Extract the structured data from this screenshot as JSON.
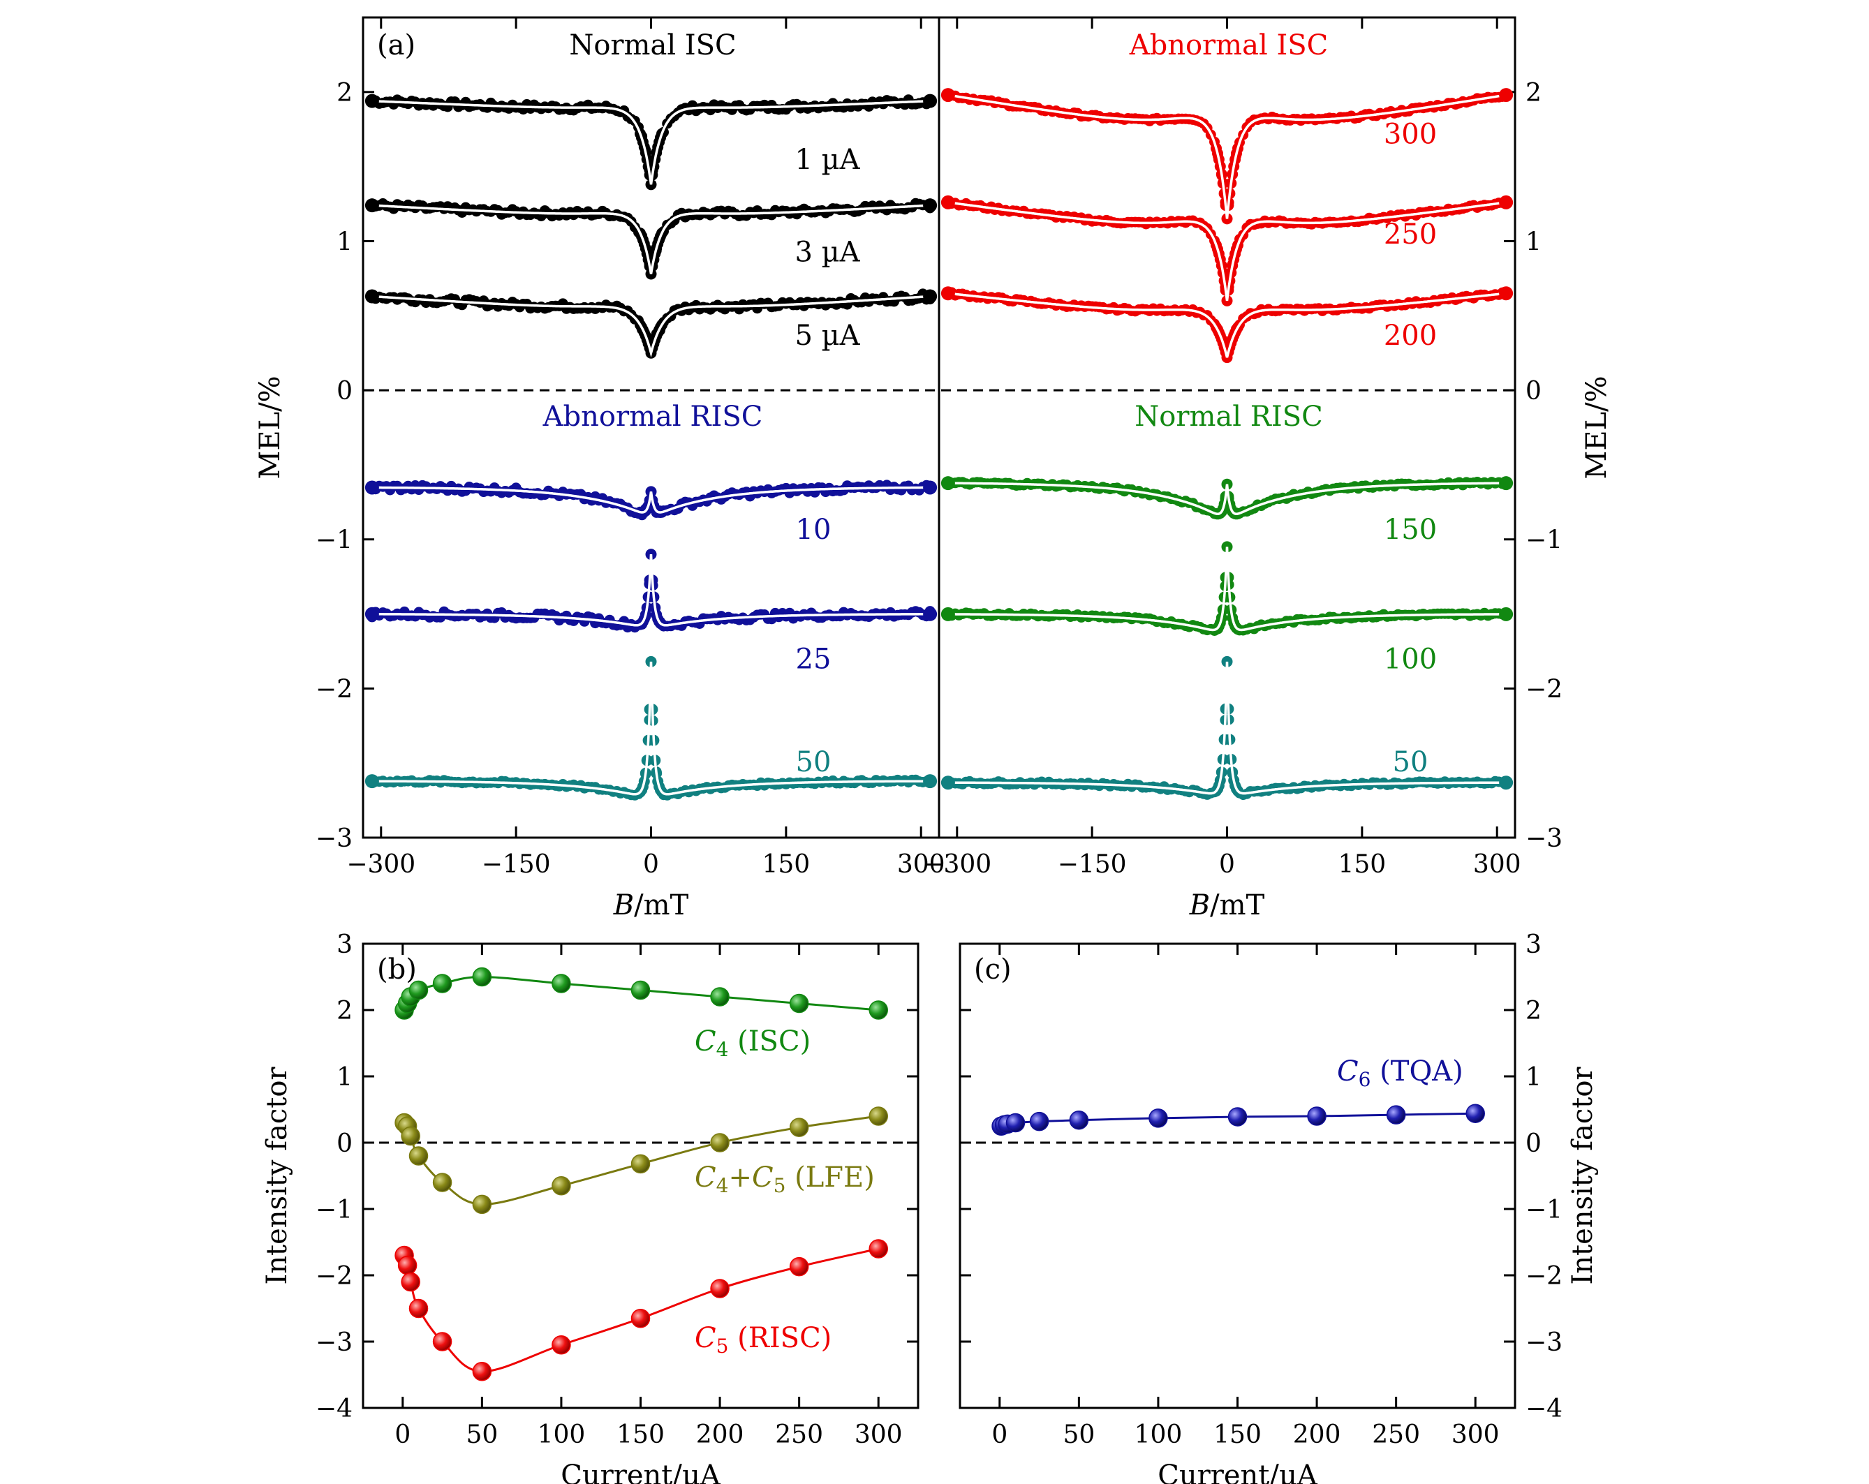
{
  "colors": {
    "black": "#000000",
    "red": "#ee0000",
    "navy": "#101099",
    "teal": "#108080",
    "green": "#118811",
    "olive": "#7a7a10",
    "fit": "#ffffff"
  },
  "chart_data": [
    {
      "type": "line",
      "panel": "(a)",
      "xlabel_italic": "B",
      "xlabel_rest": "/mT",
      "ylabel": "MEL/%",
      "xlim": [
        -320,
        320
      ],
      "ylim": [
        -3,
        2.5
      ],
      "xticks": [
        "−300",
        "−150",
        "0",
        "150",
        "300"
      ],
      "yticks": [
        "−3",
        "−2",
        "−1",
        "0",
        "1",
        "2"
      ],
      "subplots": [
        {
          "title": "Normal ISC",
          "title_color": "black",
          "position": "top-left",
          "curves": [
            {
              "label": "1 µA",
              "color": "black",
              "kind": "dip",
              "base": 1.94,
              "center": 1.38,
              "width": 12,
              "rise": 0.08,
              "noise": 0.02
            },
            {
              "label": "3 µA",
              "color": "black",
              "kind": "dip",
              "base": 1.24,
              "center": 0.78,
              "width": 12,
              "rise": 0.1,
              "noise": 0.02
            },
            {
              "label": "5 µA",
              "color": "black",
              "kind": "dip",
              "base": 0.63,
              "center": 0.25,
              "width": 15,
              "rise": 0.12,
              "noise": 0.02
            }
          ]
        },
        {
          "title": "Abnormal ISC",
          "title_color": "red",
          "position": "top-right",
          "curves": [
            {
              "label": "300",
              "color": "red",
              "kind": "dip",
              "base": 1.98,
              "center": 1.15,
              "width": 12,
              "rise": 0.3,
              "noise": 0.01
            },
            {
              "label": "250",
              "color": "red",
              "kind": "dip",
              "base": 1.26,
              "center": 0.6,
              "width": 12,
              "rise": 0.25,
              "noise": 0.01
            },
            {
              "label": "200",
              "color": "red",
              "kind": "dip",
              "base": 0.65,
              "center": 0.22,
              "width": 15,
              "rise": 0.2,
              "noise": 0.01
            }
          ]
        },
        {
          "title": "Abnormal RISC",
          "title_color": "navy",
          "position": "bottom-left",
          "curves": [
            {
              "label": "10",
              "color": "navy",
              "kind": "spike",
              "base": -0.65,
              "trough": -0.85,
              "peak": -0.68,
              "noise": 0.02
            },
            {
              "label": "25",
              "color": "navy",
              "kind": "spike",
              "base": -1.5,
              "trough": -1.6,
              "peak": -1.1,
              "noise": 0.02
            },
            {
              "label": "50",
              "color": "teal",
              "kind": "spike",
              "base": -2.62,
              "trough": -2.74,
              "peak": -1.82,
              "noise": 0.01
            }
          ]
        },
        {
          "title": "Normal RISC",
          "title_color": "green",
          "position": "bottom-right",
          "curves": [
            {
              "label": "150",
              "color": "green",
              "kind": "spike",
              "base": -0.62,
              "trough": -0.87,
              "peak": -0.63,
              "noise": 0.01
            },
            {
              "label": "100",
              "color": "green",
              "kind": "spike",
              "base": -1.5,
              "trough": -1.64,
              "peak": -1.05,
              "noise": 0.01
            },
            {
              "label": "50",
              "color": "teal",
              "kind": "spike",
              "base": -2.63,
              "trough": -2.73,
              "peak": -1.82,
              "noise": 0.01
            }
          ]
        }
      ]
    },
    {
      "type": "scatter",
      "panel": "(b)",
      "xlabel": "Current/µA",
      "ylabel": "Intensity factor",
      "xlim": [
        -25,
        325
      ],
      "ylim": [
        -4,
        3
      ],
      "xticks": [
        "0",
        "50",
        "100",
        "150",
        "200",
        "250",
        "300"
      ],
      "yticks": [
        "−4",
        "−3",
        "−2",
        "−1",
        "0",
        "1",
        "2",
        "3"
      ],
      "series": [
        {
          "label_math": "C",
          "label_sub": "4",
          "label_plus": "",
          "label_math2": "",
          "label_sub2": "",
          "label_rest": " (ISC)",
          "color": "green",
          "x": [
            1,
            3,
            5,
            10,
            25,
            50,
            100,
            150,
            200,
            250,
            300
          ],
          "y": [
            2.0,
            2.1,
            2.2,
            2.3,
            2.4,
            2.5,
            2.4,
            2.3,
            2.2,
            2.1,
            2.0
          ]
        },
        {
          "label_math": "C",
          "label_sub": "4",
          "label_plus": "+",
          "label_math2": "C",
          "label_sub2": "5",
          "label_rest": " (LFE)",
          "color": "olive",
          "x": [
            1,
            3,
            5,
            10,
            25,
            50,
            100,
            150,
            200,
            250,
            300
          ],
          "y": [
            0.3,
            0.25,
            0.1,
            -0.2,
            -0.6,
            -0.93,
            -0.65,
            -0.32,
            0.0,
            0.23,
            0.4
          ]
        },
        {
          "label_math": "C",
          "label_sub": "5",
          "label_plus": "",
          "label_math2": "",
          "label_sub2": "",
          "label_rest": " (RISC)",
          "color": "red",
          "x": [
            1,
            3,
            5,
            10,
            25,
            50,
            100,
            150,
            200,
            250,
            300
          ],
          "y": [
            -1.7,
            -1.85,
            -2.1,
            -2.5,
            -3.0,
            -3.45,
            -3.05,
            -2.65,
            -2.2,
            -1.87,
            -1.6
          ]
        }
      ]
    },
    {
      "type": "scatter",
      "panel": "(c)",
      "xlabel": "Current/µA",
      "ylabel": "Intensity factor",
      "xlim": [
        -25,
        325
      ],
      "ylim": [
        -4,
        3
      ],
      "xticks": [
        "0",
        "50",
        "100",
        "150",
        "200",
        "250",
        "300"
      ],
      "yticks": [
        "−4",
        "−3",
        "−2",
        "−1",
        "0",
        "1",
        "2",
        "3"
      ],
      "series": [
        {
          "label_math": "C",
          "label_sub": "6",
          "label_plus": "",
          "label_math2": "",
          "label_sub2": "",
          "label_rest": " (TQA)",
          "color": "navy",
          "x": [
            1,
            3,
            5,
            10,
            25,
            50,
            100,
            150,
            200,
            250,
            300
          ],
          "y": [
            0.25,
            0.27,
            0.28,
            0.3,
            0.32,
            0.34,
            0.37,
            0.39,
            0.4,
            0.42,
            0.44
          ]
        }
      ]
    }
  ]
}
